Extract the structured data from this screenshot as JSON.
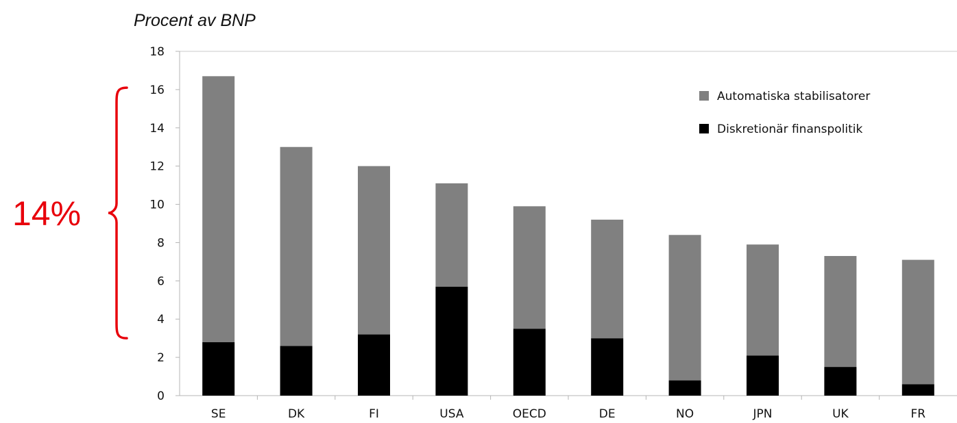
{
  "chart_data": {
    "type": "bar",
    "stacked": true,
    "title": "Procent av BNP",
    "xlabel": "",
    "ylabel": "",
    "categories": [
      "SE",
      "DK",
      "FI",
      "USA",
      "OECD",
      "DE",
      "NO",
      "JPN",
      "UK",
      "FR"
    ],
    "series": [
      {
        "name": "Diskretionär finanspolitik",
        "color": "#000000",
        "values": [
          2.8,
          2.6,
          3.2,
          5.7,
          3.5,
          3.0,
          0.8,
          2.1,
          1.5,
          0.6
        ]
      },
      {
        "name": "Automatiska stabilisatorer",
        "color": "#808080",
        "values": [
          13.9,
          10.4,
          8.8,
          5.4,
          6.4,
          6.2,
          7.6,
          5.8,
          5.8,
          6.5
        ]
      }
    ],
    "ylim": [
      0,
      18
    ],
    "yticks": [
      0,
      2,
      4,
      6,
      8,
      10,
      12,
      14,
      16,
      18
    ],
    "grid": false,
    "legend": {
      "placement": "top-right",
      "order": [
        "Automatiska stabilisatorer",
        "Diskretionär finanspolitik"
      ]
    },
    "annotation": {
      "text": "14%",
      "color": "#e8000b",
      "y_from": 3,
      "y_to": 16.1
    }
  }
}
